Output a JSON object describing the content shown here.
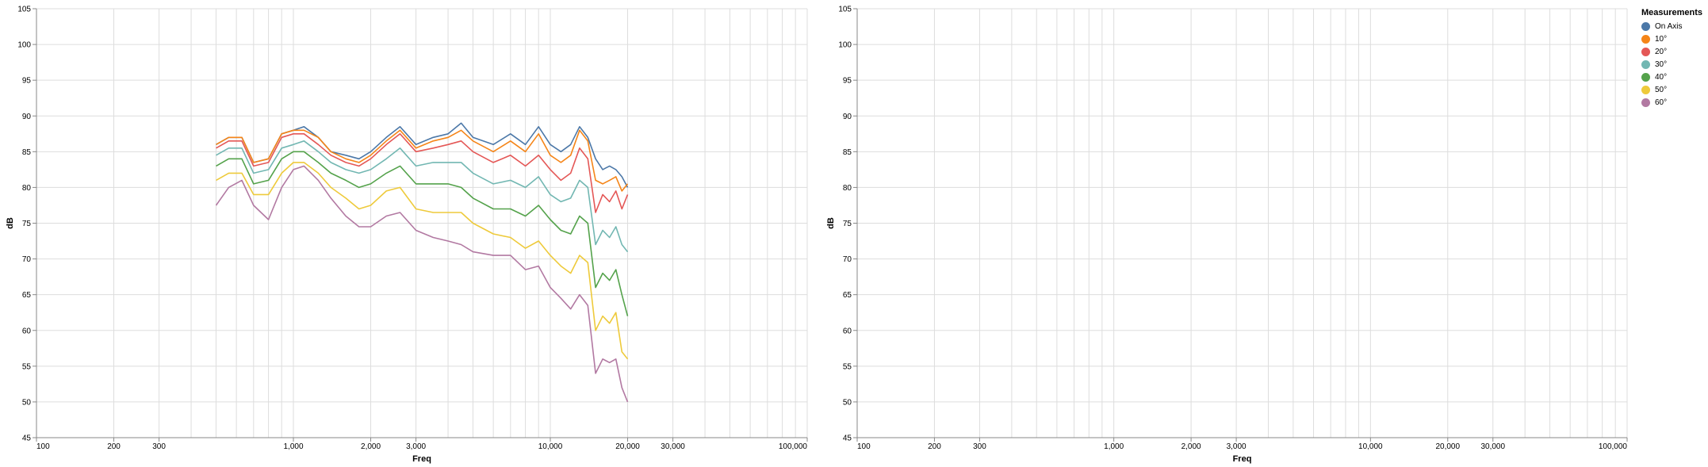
{
  "chart_data": [
    {
      "type": "line",
      "xscale": "log",
      "xlim": [
        100,
        100000
      ],
      "ylim": [
        45,
        105
      ],
      "xlabel": "Freq",
      "ylabel": "dB",
      "x_ticks": [
        100,
        200,
        300,
        1000,
        2000,
        3000,
        10000,
        20000,
        30000,
        100000
      ],
      "x_tick_labels": [
        "100",
        "200",
        "300",
        "1,000",
        "2,000",
        "3,000",
        "10,000",
        "20,000",
        "30,000",
        "100,000"
      ],
      "y_ticks": [
        45,
        50,
        55,
        60,
        65,
        70,
        75,
        80,
        85,
        90,
        95,
        100,
        105
      ],
      "y_tick_labels": [
        "45",
        "50",
        "55",
        "60",
        "65",
        "70",
        "75",
        "80",
        "85",
        "90",
        "95",
        "100",
        "105"
      ],
      "grid": true,
      "x": [
        500,
        560,
        630,
        700,
        800,
        900,
        1000,
        1100,
        1250,
        1400,
        1600,
        1800,
        2000,
        2300,
        2600,
        3000,
        3500,
        4000,
        4500,
        5000,
        6000,
        7000,
        8000,
        9000,
        10000,
        11000,
        12000,
        13000,
        14000,
        15000,
        16000,
        17000,
        18000,
        19000,
        20000
      ],
      "series": [
        {
          "name": "On Axis",
          "values": [
            86,
            87,
            87,
            83.5,
            84,
            87.5,
            88,
            88.5,
            87,
            85,
            84.5,
            84,
            85,
            87,
            88.5,
            86,
            87,
            87.5,
            89,
            87,
            86,
            87.5,
            86,
            88.5,
            86,
            85,
            86,
            88.5,
            87,
            84,
            82.5,
            83,
            82.5,
            81.5,
            80
          ]
        },
        {
          "name": "10°",
          "values": [
            86,
            87,
            87,
            83.5,
            84,
            87.5,
            88,
            88,
            87,
            85,
            84,
            83.5,
            84.5,
            86.5,
            88,
            85.5,
            86.5,
            87,
            88,
            86.5,
            85,
            86.5,
            85,
            87.5,
            84.5,
            83.5,
            84.5,
            88,
            86.5,
            81,
            80.5,
            81,
            81.5,
            79.5,
            80.5
          ]
        },
        {
          "name": "20°",
          "values": [
            85.5,
            86.5,
            86.5,
            83,
            83.5,
            87,
            87.5,
            87.5,
            86,
            84.5,
            83.5,
            83,
            84,
            86,
            87.5,
            85,
            85.5,
            86,
            86.5,
            85,
            83.5,
            84.5,
            83,
            84.5,
            82.5,
            81,
            82,
            85.5,
            84,
            76.5,
            79,
            78,
            79.5,
            77,
            79
          ]
        },
        {
          "name": "30°",
          "values": [
            84.5,
            85.5,
            85.5,
            82,
            82.5,
            85.5,
            86,
            86.5,
            85,
            83.5,
            82.5,
            82,
            82.5,
            84,
            85.5,
            83,
            83.5,
            83.5,
            83.5,
            82,
            80.5,
            81,
            80,
            81.5,
            79,
            78,
            78.5,
            81,
            80,
            72,
            74,
            73,
            74.5,
            72,
            71
          ]
        },
        {
          "name": "40°",
          "values": [
            83,
            84,
            84,
            80.5,
            81,
            84,
            85,
            85,
            83.5,
            82,
            81,
            80,
            80.5,
            82,
            83,
            80.5,
            80.5,
            80.5,
            80,
            78.5,
            77,
            77,
            76,
            77.5,
            75.5,
            74,
            73.5,
            76,
            75,
            66,
            68,
            67,
            68.5,
            65,
            62
          ]
        },
        {
          "name": "50°",
          "values": [
            81,
            82,
            82,
            79,
            79,
            82,
            83.5,
            83.5,
            82,
            80,
            78.5,
            77,
            77.5,
            79.5,
            80,
            77,
            76.5,
            76.5,
            76.5,
            75,
            73.5,
            73,
            71.5,
            72.5,
            70.5,
            69,
            68,
            70.5,
            69.5,
            60,
            62,
            61,
            62.5,
            57,
            56
          ]
        },
        {
          "name": "60°",
          "values": [
            77.5,
            80,
            81,
            77.5,
            75.5,
            80,
            82.5,
            83,
            81,
            78.5,
            76,
            74.5,
            74.5,
            76,
            76.5,
            74,
            73,
            72.5,
            72,
            71,
            70.5,
            70.5,
            68.5,
            69,
            66,
            64.5,
            63,
            65,
            63.5,
            54,
            56,
            55.5,
            56,
            52,
            50
          ]
        }
      ]
    },
    {
      "type": "line",
      "xscale": "log",
      "xlim": [
        100,
        100000
      ],
      "ylim": [
        45,
        105
      ],
      "xlabel": "Freq",
      "ylabel": "dB",
      "x_ticks": [
        100,
        200,
        300,
        1000,
        2000,
        3000,
        10000,
        20000,
        30000,
        100000
      ],
      "x_tick_labels": [
        "100",
        "200",
        "300",
        "1,000",
        "2,000",
        "3,000",
        "10,000",
        "20,000",
        "30,000",
        "100,000"
      ],
      "y_ticks": [
        45,
        50,
        55,
        60,
        65,
        70,
        75,
        80,
        85,
        90,
        95,
        100,
        105
      ],
      "y_tick_labels": [
        "45",
        "50",
        "55",
        "60",
        "65",
        "70",
        "75",
        "80",
        "85",
        "90",
        "95",
        "100",
        "105"
      ],
      "grid": true,
      "series": []
    }
  ],
  "legend": {
    "title": "Measurements",
    "items": [
      {
        "label": "On Axis",
        "color": "#4c78a8"
      },
      {
        "label": "10°",
        "color": "#f58518"
      },
      {
        "label": "20°",
        "color": "#e45756"
      },
      {
        "label": "30°",
        "color": "#72b7b2"
      },
      {
        "label": "40°",
        "color": "#54a24b"
      },
      {
        "label": "50°",
        "color": "#eeca3b"
      },
      {
        "label": "60°",
        "color": "#b279a2"
      }
    ]
  },
  "colors": {
    "grid": "#dddddd",
    "axis": "#888888"
  }
}
